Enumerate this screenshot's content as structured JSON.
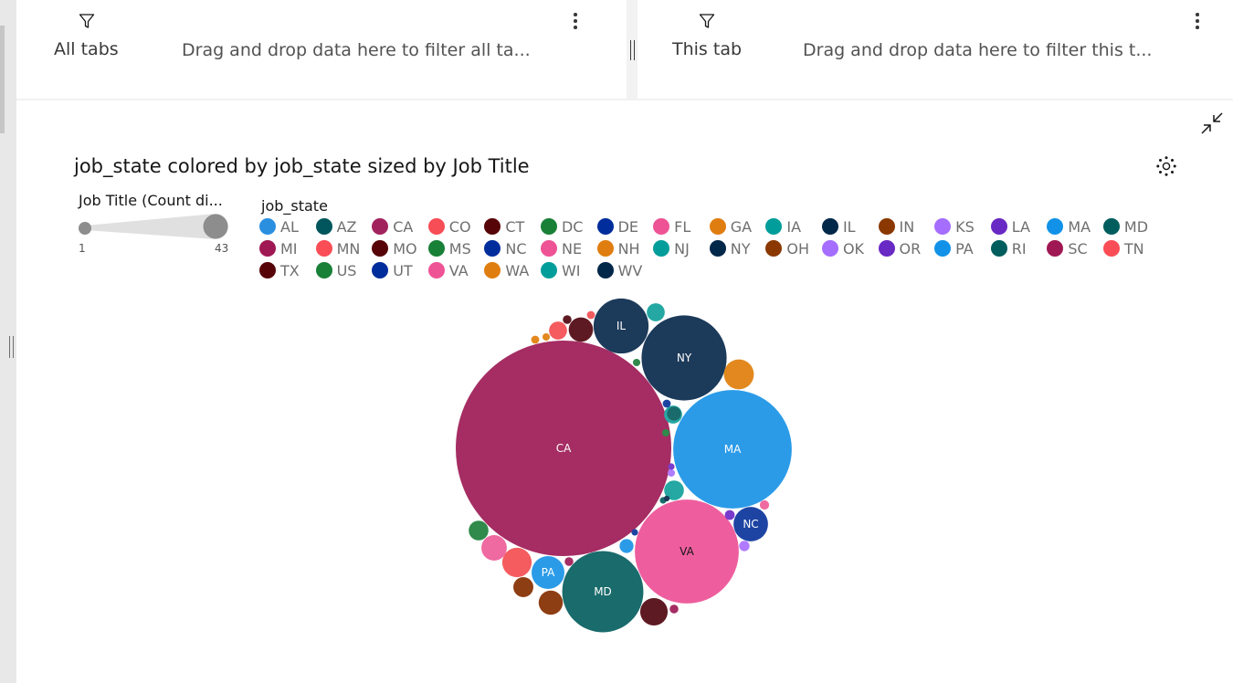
{
  "filters": {
    "all_tabs": {
      "label": "All tabs",
      "hint": "Drag and drop data here to filter all ta..."
    },
    "this_tab": {
      "label": "This tab",
      "hint": "Drag and drop data here to filter this t..."
    }
  },
  "icons": {
    "filter": "filter-icon",
    "more": "overflow-menu-icon",
    "collapse": "minimize-icon",
    "settings": "settings-icon"
  },
  "chart_data": {
    "type": "bubble",
    "title": "job_state colored by job_state sized by Job Title",
    "size_legend": {
      "title": "Job Title (Count di...",
      "min_label": "1",
      "max_label": "43",
      "min": 1,
      "max": 43
    },
    "color_legend": {
      "title": "job_state",
      "entries": [
        {
          "name": "AL",
          "color": "#2b8fe0"
        },
        {
          "name": "AZ",
          "color": "#00565c"
        },
        {
          "name": "CA",
          "color": "#a1235e"
        },
        {
          "name": "CO",
          "color": "#f74d56"
        },
        {
          "name": "CT",
          "color": "#570408"
        },
        {
          "name": "DC",
          "color": "#198038"
        },
        {
          "name": "DE",
          "color": "#002d9c"
        },
        {
          "name": "FL",
          "color": "#ee5396"
        },
        {
          "name": "GA",
          "color": "#e07d10"
        },
        {
          "name": "IA",
          "color": "#009d9a"
        },
        {
          "name": "IL",
          "color": "#012749"
        },
        {
          "name": "IN",
          "color": "#8a3800"
        },
        {
          "name": "KS",
          "color": "#a56eff"
        },
        {
          "name": "LA",
          "color": "#6929c4"
        },
        {
          "name": "MA",
          "color": "#1192e8"
        },
        {
          "name": "MD",
          "color": "#005d5d"
        },
        {
          "name": "MI",
          "color": "#9f1853"
        },
        {
          "name": "MN",
          "color": "#fa4d56"
        },
        {
          "name": "MO",
          "color": "#570408"
        },
        {
          "name": "MS",
          "color": "#198038"
        },
        {
          "name": "NC",
          "color": "#002d9c"
        },
        {
          "name": "NE",
          "color": "#ee5396"
        },
        {
          "name": "NH",
          "color": "#e07d10"
        },
        {
          "name": "NJ",
          "color": "#009d9a"
        },
        {
          "name": "NY",
          "color": "#012749"
        },
        {
          "name": "OH",
          "color": "#8a3800"
        },
        {
          "name": "OK",
          "color": "#a56eff"
        },
        {
          "name": "OR",
          "color": "#6929c4"
        },
        {
          "name": "PA",
          "color": "#1192e8"
        },
        {
          "name": "RI",
          "color": "#005d5d"
        },
        {
          "name": "SC",
          "color": "#9f1853"
        },
        {
          "name": "TN",
          "color": "#fa4d56"
        },
        {
          "name": "TX",
          "color": "#570408"
        },
        {
          "name": "US",
          "color": "#198038"
        },
        {
          "name": "UT",
          "color": "#002d9c"
        },
        {
          "name": "VA",
          "color": "#ee5396"
        },
        {
          "name": "WA",
          "color": "#e07d10"
        },
        {
          "name": "WI",
          "color": "#009d9a"
        },
        {
          "name": "WV",
          "color": "#012749"
        }
      ]
    },
    "bubbles": [
      {
        "state": "CA",
        "value": 43,
        "color": "#a52d63",
        "label": "CA"
      },
      {
        "state": "MA",
        "value": 13,
        "color": "#2b9be8",
        "label": "MA"
      },
      {
        "state": "VA",
        "value": 10,
        "color": "#ee5e9e",
        "label": "VA"
      },
      {
        "state": "NY",
        "value": 6.7,
        "color": "#1c3a5a",
        "label": "NY"
      },
      {
        "state": "MD",
        "value": 6.1,
        "color": "#1a6b6b",
        "label": "MD"
      },
      {
        "state": "IL",
        "value": 2.8,
        "color": "#1c3a5a",
        "label": "IL"
      },
      {
        "state": "NC",
        "value": 1.1,
        "color": "#1d44a3",
        "label": "NC"
      },
      {
        "state": "PA",
        "value": 1,
        "color": "#2b9be8",
        "label": "PA"
      },
      {
        "state": "GA",
        "value": 0.83,
        "color": "#e2881e",
        "label": ""
      },
      {
        "state": "TX",
        "value": 0.7,
        "color": "#5e1a22",
        "label": ""
      },
      {
        "state": "CO",
        "value": 0.8,
        "color": "#f45c5f",
        "label": ""
      },
      {
        "state": "CT",
        "value": 0.55,
        "color": "#5e1a22",
        "label": ""
      },
      {
        "state": "OH",
        "value": 0.54,
        "color": "#8e3e13",
        "label": ""
      },
      {
        "state": "FL",
        "value": 0.6,
        "color": "#ef6aa1",
        "label": ""
      },
      {
        "state": "DC",
        "value": 0.36,
        "color": "#2f8a4b",
        "label": ""
      },
      {
        "state": "IN",
        "value": 0.37,
        "color": "#8e3e13",
        "label": ""
      },
      {
        "state": "IA",
        "value": 0.36,
        "color": "#25a8a3",
        "label": ""
      },
      {
        "state": "NJ",
        "value": 0.3,
        "color": "#25a8a3",
        "label": ""
      },
      {
        "state": "WI",
        "value": 0.3,
        "color": "#25a8a3",
        "label": ""
      },
      {
        "state": "MN",
        "value": 0.3,
        "color": "#f45c5f",
        "label": ""
      },
      {
        "state": "AL",
        "value": 0.18,
        "color": "#2b9be8",
        "label": ""
      },
      {
        "state": "AZ",
        "value": 0.18,
        "color": "#1a6b6b",
        "label": ""
      },
      {
        "state": "NE",
        "value": 0.08,
        "color": "#ef6aa1",
        "label": ""
      },
      {
        "state": "KS",
        "value": 0.1,
        "color": "#b07bff",
        "label": ""
      },
      {
        "state": "LA",
        "value": 0.09,
        "color": "#7a3ccc",
        "label": ""
      },
      {
        "state": "MI",
        "value": 0.07,
        "color": "#a52d63",
        "label": ""
      },
      {
        "state": "SC",
        "value": 0.07,
        "color": "#a52d63",
        "label": ""
      },
      {
        "state": "MO",
        "value": 0.07,
        "color": "#5e1a22",
        "label": ""
      },
      {
        "state": "WA",
        "value": 0.06,
        "color": "#e2881e",
        "label": ""
      },
      {
        "state": "NH",
        "value": 0.05,
        "color": "#e2881e",
        "label": ""
      },
      {
        "state": "TN",
        "value": 0.06,
        "color": "#f45c5f",
        "label": ""
      },
      {
        "state": "DE",
        "value": 0.06,
        "color": "#1d44a3",
        "label": ""
      },
      {
        "state": "MS",
        "value": 0.05,
        "color": "#2f8a4b",
        "label": ""
      },
      {
        "state": "US",
        "value": 0.05,
        "color": "#2f8a4b",
        "label": ""
      },
      {
        "state": "OK",
        "value": 0.05,
        "color": "#b07bff",
        "label": ""
      },
      {
        "state": "OR",
        "value": 0.04,
        "color": "#7a3ccc",
        "label": ""
      },
      {
        "state": "RI",
        "value": 0.04,
        "color": "#1a6b6b",
        "label": ""
      },
      {
        "state": "UT",
        "value": 0.04,
        "color": "#1d44a3",
        "label": ""
      },
      {
        "state": "WV",
        "value": 0.03,
        "color": "#1c3a5a",
        "label": ""
      }
    ]
  }
}
